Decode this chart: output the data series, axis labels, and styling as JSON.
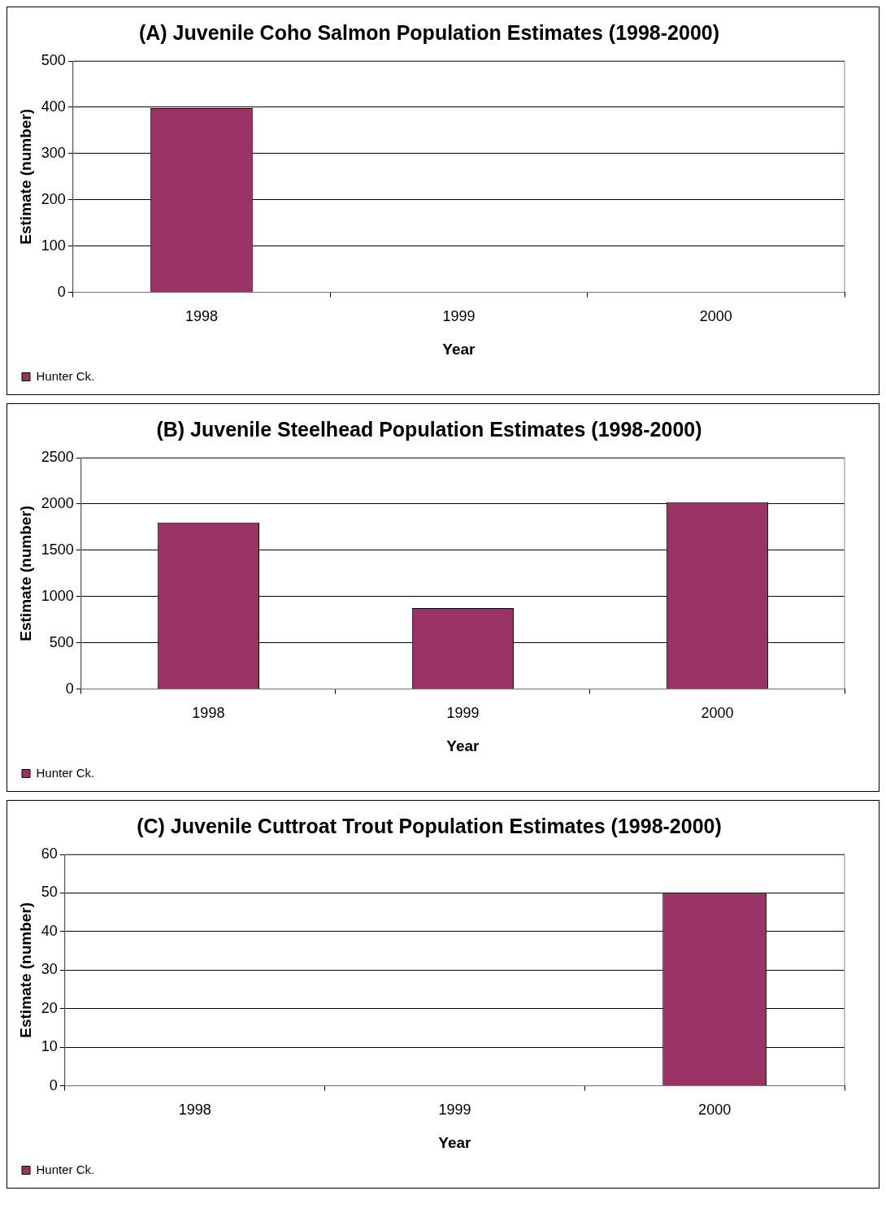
{
  "chart_data": [
    {
      "type": "bar",
      "title": "(A) Juvenile Coho Salmon Population Estimates (1998-2000)",
      "xlabel": "Year",
      "ylabel": "Estimate (number)",
      "categories": [
        "1998",
        "1999",
        "2000"
      ],
      "series": [
        {
          "name": "Hunter Ck.",
          "color": "#993366",
          "values": [
            398,
            null,
            null
          ]
        }
      ],
      "ylim": [
        0,
        500
      ],
      "yticks": [
        0,
        100,
        200,
        300,
        400,
        500
      ],
      "grid": "y",
      "legend": "bottom left"
    },
    {
      "type": "bar",
      "title": "(B) Juvenile Steelhead Population Estimates (1998-2000)",
      "xlabel": "Year",
      "ylabel": "Estimate (number)",
      "categories": [
        "1998",
        "1999",
        "2000"
      ],
      "series": [
        {
          "name": "Hunter Ck.",
          "color": "#993366",
          "values": [
            1800,
            875,
            2020
          ]
        }
      ],
      "ylim": [
        0,
        2500
      ],
      "yticks": [
        0,
        500,
        1000,
        1500,
        2000,
        2500
      ],
      "grid": "y",
      "legend": "bottom left"
    },
    {
      "type": "bar",
      "title": "(C) Juvenile Cuttroat Trout Population Estimates (1998-2000)",
      "xlabel": "Year",
      "ylabel": "Estimate (number)",
      "categories": [
        "1998",
        "1999",
        "2000"
      ],
      "series": [
        {
          "name": "Hunter Ck.",
          "color": "#993366",
          "values": [
            null,
            null,
            50
          ]
        }
      ],
      "ylim": [
        0,
        60
      ],
      "yticks": [
        0,
        10,
        20,
        30,
        40,
        50,
        60
      ],
      "grid": "y",
      "legend": "bottom left"
    }
  ]
}
